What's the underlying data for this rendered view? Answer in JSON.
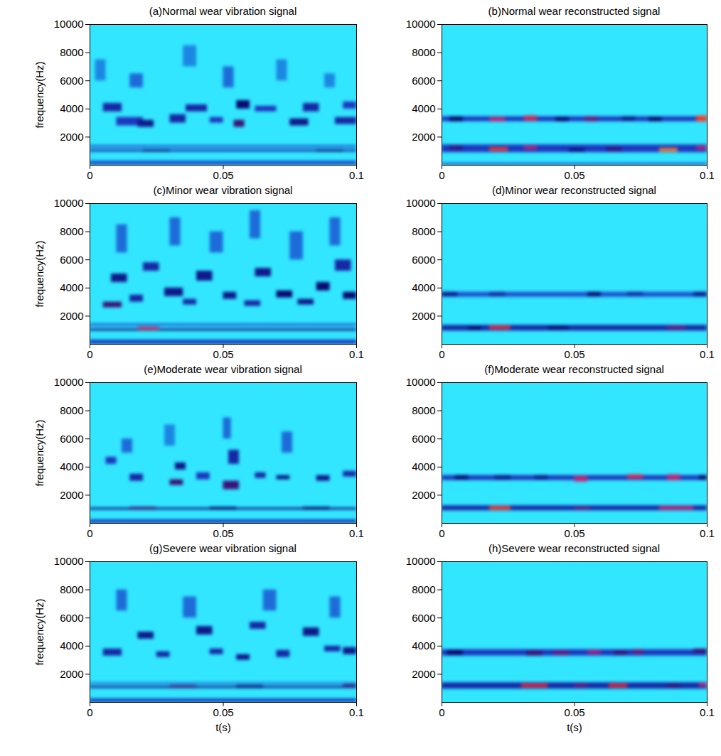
{
  "chart_data": [
    {
      "type": "heatmap",
      "title": "(a)Normal wear vibration signal",
      "ylabel": "frequency(Hz)",
      "xlim": [
        0,
        0.1
      ],
      "xticks": [
        0,
        0.05,
        0.1
      ],
      "ylim": [
        0,
        10000
      ],
      "yticks": [
        2000,
        4000,
        6000,
        8000,
        10000
      ],
      "clim": [
        0,
        1
      ],
      "cells": [
        [
          0,
          0.1,
          0,
          300,
          0.3
        ],
        [
          0,
          0.1,
          950,
          1100,
          0.4
        ],
        [
          0,
          0.1,
          1250,
          1400,
          0.3
        ],
        [
          0.02,
          0.03,
          950,
          1100,
          0.5
        ],
        [
          0.085,
          0.095,
          950,
          1100,
          0.5
        ],
        [
          0.005,
          0.012,
          3800,
          4400,
          0.4
        ],
        [
          0.01,
          0.02,
          2800,
          3400,
          0.35
        ],
        [
          0.018,
          0.024,
          2700,
          3200,
          0.45
        ],
        [
          0.03,
          0.036,
          3000,
          3600,
          0.4
        ],
        [
          0.036,
          0.044,
          3800,
          4300,
          0.4
        ],
        [
          0.045,
          0.05,
          3000,
          3400,
          0.35
        ],
        [
          0.054,
          0.058,
          2700,
          3200,
          0.55
        ],
        [
          0.055,
          0.06,
          4000,
          4600,
          0.5
        ],
        [
          0.062,
          0.07,
          3800,
          4200,
          0.35
        ],
        [
          0.075,
          0.082,
          2800,
          3300,
          0.45
        ],
        [
          0.08,
          0.086,
          3800,
          4400,
          0.4
        ],
        [
          0.092,
          0.1,
          2900,
          3400,
          0.4
        ],
        [
          0.095,
          0.1,
          4000,
          4500,
          0.35
        ],
        [
          0.015,
          0.02,
          5500,
          6500,
          0.25
        ],
        [
          0.05,
          0.054,
          5500,
          7000,
          0.25
        ],
        [
          0.07,
          0.074,
          6000,
          7500,
          0.2
        ],
        [
          0.035,
          0.04,
          7000,
          8500,
          0.2
        ],
        [
          0.002,
          0.006,
          6000,
          7500,
          0.2
        ],
        [
          0.088,
          0.092,
          5500,
          6500,
          0.2
        ]
      ]
    },
    {
      "type": "heatmap",
      "title": "(b)Normal wear reconstructed signal",
      "xlim": [
        0,
        0.1
      ],
      "xticks": [
        0,
        0.05,
        0.1
      ],
      "ylim": [
        0,
        10000
      ],
      "yticks": [
        2000,
        4000,
        6000,
        8000,
        10000
      ],
      "clim": [
        0,
        1
      ],
      "cells": [
        [
          0,
          0.1,
          0,
          150,
          0.3
        ],
        [
          0,
          0.1,
          3100,
          3450,
          0.35
        ],
        [
          0.003,
          0.008,
          3100,
          3450,
          0.5
        ],
        [
          0.018,
          0.024,
          3100,
          3400,
          0.7
        ],
        [
          0.031,
          0.036,
          3150,
          3500,
          0.75
        ],
        [
          0.043,
          0.048,
          3100,
          3400,
          0.5
        ],
        [
          0.054,
          0.059,
          3100,
          3450,
          0.6
        ],
        [
          0.068,
          0.073,
          3150,
          3450,
          0.45
        ],
        [
          0.078,
          0.083,
          3100,
          3400,
          0.5
        ],
        [
          0.096,
          0.1,
          3100,
          3500,
          0.85
        ],
        [
          0,
          0.1,
          900,
          1450,
          0.35
        ],
        [
          0.003,
          0.008,
          1100,
          1350,
          0.55
        ],
        [
          0.018,
          0.025,
          1000,
          1250,
          0.85
        ],
        [
          0.031,
          0.036,
          1100,
          1350,
          0.7
        ],
        [
          0.048,
          0.054,
          950,
          1150,
          0.5
        ],
        [
          0.062,
          0.068,
          1000,
          1250,
          0.55
        ],
        [
          0.082,
          0.089,
          950,
          1200,
          0.9
        ],
        [
          0.096,
          0.1,
          1100,
          1350,
          0.7
        ]
      ]
    },
    {
      "type": "heatmap",
      "title": "(c)Minor wear vibration signal",
      "ylabel": "frequency(Hz)",
      "xlim": [
        0,
        0.1
      ],
      "xticks": [
        0,
        0.05,
        0.1
      ],
      "ylim": [
        0,
        10000
      ],
      "yticks": [
        2000,
        4000,
        6000,
        8000,
        10000
      ],
      "clim": [
        0,
        1
      ],
      "cells": [
        [
          0,
          0.1,
          0,
          300,
          0.35
        ],
        [
          0,
          0.1,
          950,
          1100,
          0.45
        ],
        [
          0,
          0.1,
          1300,
          1450,
          0.3
        ],
        [
          0.018,
          0.026,
          1000,
          1200,
          0.75
        ],
        [
          0.005,
          0.012,
          2600,
          3000,
          0.55
        ],
        [
          0.008,
          0.014,
          4400,
          5000,
          0.45
        ],
        [
          0.015,
          0.02,
          3000,
          3500,
          0.4
        ],
        [
          0.02,
          0.026,
          5200,
          5800,
          0.4
        ],
        [
          0.028,
          0.035,
          3400,
          4000,
          0.45
        ],
        [
          0.035,
          0.04,
          2800,
          3200,
          0.4
        ],
        [
          0.04,
          0.046,
          4500,
          5200,
          0.45
        ],
        [
          0.05,
          0.055,
          3200,
          3700,
          0.45
        ],
        [
          0.058,
          0.064,
          2700,
          3100,
          0.4
        ],
        [
          0.062,
          0.068,
          4800,
          5400,
          0.45
        ],
        [
          0.07,
          0.076,
          3300,
          3800,
          0.5
        ],
        [
          0.078,
          0.084,
          2800,
          3200,
          0.45
        ],
        [
          0.085,
          0.09,
          3800,
          4400,
          0.5
        ],
        [
          0.092,
          0.098,
          5200,
          6000,
          0.4
        ],
        [
          0.095,
          0.1,
          3200,
          3700,
          0.5
        ],
        [
          0.01,
          0.014,
          6500,
          8500,
          0.25
        ],
        [
          0.03,
          0.034,
          7000,
          9000,
          0.25
        ],
        [
          0.045,
          0.05,
          6500,
          8000,
          0.25
        ],
        [
          0.06,
          0.064,
          7500,
          9500,
          0.25
        ],
        [
          0.075,
          0.08,
          6000,
          8000,
          0.25
        ],
        [
          0.09,
          0.094,
          7000,
          9000,
          0.25
        ]
      ]
    },
    {
      "type": "heatmap",
      "title": "(d)Minor wear reconstructed signal",
      "xlim": [
        0,
        0.1
      ],
      "xticks": [
        0,
        0.05,
        0.1
      ],
      "ylim": [
        0,
        10000
      ],
      "yticks": [
        2000,
        4000,
        6000,
        8000,
        10000
      ],
      "clim": [
        0,
        1
      ],
      "cells": [
        [
          0,
          0.1,
          3350,
          3700,
          0.3
        ],
        [
          0,
          0.006,
          3400,
          3700,
          0.45
        ],
        [
          0.018,
          0.024,
          3400,
          3700,
          0.4
        ],
        [
          0.055,
          0.06,
          3400,
          3700,
          0.5
        ],
        [
          0.07,
          0.076,
          3450,
          3700,
          0.4
        ],
        [
          0.095,
          0.1,
          3400,
          3700,
          0.45
        ],
        [
          0,
          0.1,
          950,
          1350,
          0.4
        ],
        [
          0.018,
          0.026,
          1050,
          1300,
          0.8
        ],
        [
          0.04,
          0.048,
          1050,
          1250,
          0.5
        ],
        [
          0.085,
          0.092,
          1050,
          1300,
          0.6
        ],
        [
          0.01,
          0.015,
          1000,
          1250,
          0.5
        ]
      ]
    },
    {
      "type": "heatmap",
      "title": "(e)Moderate wear vibration signal",
      "ylabel": "frequency(Hz)",
      "xlim": [
        0,
        0.1
      ],
      "xticks": [
        0,
        0.05,
        0.1
      ],
      "ylim": [
        0,
        10000
      ],
      "yticks": [
        2000,
        4000,
        6000,
        8000,
        10000
      ],
      "clim": [
        0,
        1
      ],
      "cells": [
        [
          0,
          0.1,
          0,
          250,
          0.35
        ],
        [
          0,
          0.1,
          950,
          1100,
          0.45
        ],
        [
          0.015,
          0.025,
          950,
          1150,
          0.55
        ],
        [
          0.045,
          0.055,
          950,
          1150,
          0.5
        ],
        [
          0.08,
          0.09,
          950,
          1150,
          0.5
        ],
        [
          0.03,
          0.035,
          2700,
          3100,
          0.55
        ],
        [
          0.032,
          0.036,
          3800,
          4300,
          0.45
        ],
        [
          0.05,
          0.056,
          2400,
          3000,
          0.55
        ],
        [
          0.052,
          0.056,
          4200,
          5200,
          0.4
        ],
        [
          0.015,
          0.02,
          3000,
          3500,
          0.4
        ],
        [
          0.07,
          0.075,
          3100,
          3400,
          0.45
        ],
        [
          0.085,
          0.09,
          3000,
          3400,
          0.45
        ],
        [
          0.095,
          0.1,
          3300,
          3700,
          0.4
        ],
        [
          0.006,
          0.01,
          4200,
          4700,
          0.35
        ],
        [
          0.04,
          0.045,
          3100,
          3600,
          0.35
        ],
        [
          0.062,
          0.066,
          3200,
          3600,
          0.4
        ],
        [
          0.012,
          0.016,
          5000,
          6000,
          0.25
        ],
        [
          0.05,
          0.053,
          6000,
          7500,
          0.25
        ],
        [
          0.072,
          0.076,
          5000,
          6500,
          0.25
        ],
        [
          0.028,
          0.032,
          5500,
          7000,
          0.2
        ]
      ]
    },
    {
      "type": "heatmap",
      "title": "(f)Moderate wear reconstructed signal",
      "xlim": [
        0,
        0.1
      ],
      "xticks": [
        0,
        0.05,
        0.1
      ],
      "ylim": [
        0,
        10000
      ],
      "yticks": [
        2000,
        4000,
        6000,
        8000,
        10000
      ],
      "clim": [
        0,
        1
      ],
      "cells": [
        [
          0,
          0.1,
          3050,
          3400,
          0.35
        ],
        [
          0.005,
          0.01,
          3100,
          3400,
          0.5
        ],
        [
          0.02,
          0.026,
          3100,
          3400,
          0.45
        ],
        [
          0.05,
          0.055,
          2950,
          3350,
          0.7
        ],
        [
          0.07,
          0.076,
          3150,
          3450,
          0.75
        ],
        [
          0.085,
          0.09,
          3050,
          3450,
          0.7
        ],
        [
          0.097,
          0.1,
          3100,
          3400,
          0.5
        ],
        [
          0.035,
          0.04,
          3100,
          3400,
          0.45
        ],
        [
          0,
          0.1,
          900,
          1250,
          0.4
        ],
        [
          0.018,
          0.026,
          950,
          1200,
          0.85
        ],
        [
          0.05,
          0.056,
          950,
          1150,
          0.6
        ],
        [
          0.082,
          0.095,
          950,
          1200,
          0.7
        ]
      ]
    },
    {
      "type": "heatmap",
      "title": "(g)Severe wear vibration signal",
      "ylabel": "frequency(Hz)",
      "xlabel": "t(s)",
      "xlim": [
        0,
        0.1
      ],
      "xticks": [
        0,
        0.05,
        0.1
      ],
      "ylim": [
        0,
        10000
      ],
      "yticks": [
        2000,
        4000,
        6000,
        8000,
        10000
      ],
      "clim": [
        0,
        1
      ],
      "cells": [
        [
          0,
          0.1,
          0,
          250,
          0.35
        ],
        [
          0,
          0.1,
          1000,
          1150,
          0.45
        ],
        [
          0,
          0.1,
          1300,
          1400,
          0.3
        ],
        [
          0.03,
          0.04,
          1000,
          1200,
          0.55
        ],
        [
          0.055,
          0.065,
          1000,
          1200,
          0.5
        ],
        [
          0.095,
          0.1,
          1050,
          1250,
          0.55
        ],
        [
          0.005,
          0.012,
          3300,
          3800,
          0.4
        ],
        [
          0.018,
          0.024,
          4500,
          5000,
          0.45
        ],
        [
          0.025,
          0.03,
          3200,
          3600,
          0.4
        ],
        [
          0.04,
          0.046,
          4800,
          5400,
          0.45
        ],
        [
          0.045,
          0.05,
          3400,
          3800,
          0.4
        ],
        [
          0.055,
          0.06,
          3000,
          3400,
          0.45
        ],
        [
          0.06,
          0.066,
          5200,
          5700,
          0.4
        ],
        [
          0.07,
          0.075,
          3200,
          3700,
          0.4
        ],
        [
          0.08,
          0.086,
          4700,
          5300,
          0.45
        ],
        [
          0.088,
          0.094,
          3600,
          4000,
          0.4
        ],
        [
          0.095,
          0.1,
          3400,
          3900,
          0.45
        ],
        [
          0.01,
          0.014,
          6500,
          8000,
          0.25
        ],
        [
          0.035,
          0.04,
          6000,
          7500,
          0.25
        ],
        [
          0.065,
          0.07,
          6500,
          8000,
          0.25
        ],
        [
          0.09,
          0.094,
          6000,
          7500,
          0.25
        ]
      ]
    },
    {
      "type": "heatmap",
      "title": "(h)Severe wear reconstructed signal",
      "xlabel": "t(s)",
      "xlim": [
        0,
        0.1
      ],
      "xticks": [
        0,
        0.05,
        0.1
      ],
      "ylim": [
        0,
        10000
      ],
      "yticks": [
        2000,
        4000,
        6000,
        8000,
        10000
      ],
      "clim": [
        0,
        1
      ],
      "cells": [
        [
          0,
          0.1,
          3300,
          3750,
          0.35
        ],
        [
          0.002,
          0.008,
          3350,
          3700,
          0.5
        ],
        [
          0.032,
          0.038,
          3300,
          3650,
          0.55
        ],
        [
          0.042,
          0.048,
          3350,
          3650,
          0.6
        ],
        [
          0.055,
          0.06,
          3400,
          3700,
          0.65
        ],
        [
          0.065,
          0.07,
          3350,
          3650,
          0.55
        ],
        [
          0.072,
          0.076,
          3400,
          3750,
          0.6
        ],
        [
          0.095,
          0.1,
          3500,
          3800,
          0.55
        ],
        [
          0,
          0.1,
          950,
          1400,
          0.4
        ],
        [
          0.03,
          0.04,
          1050,
          1300,
          0.8
        ],
        [
          0.05,
          0.055,
          1050,
          1300,
          0.6
        ],
        [
          0.063,
          0.07,
          1050,
          1300,
          0.8
        ],
        [
          0.085,
          0.09,
          1050,
          1300,
          0.55
        ],
        [
          0.097,
          0.1,
          1100,
          1350,
          0.7
        ]
      ]
    }
  ]
}
